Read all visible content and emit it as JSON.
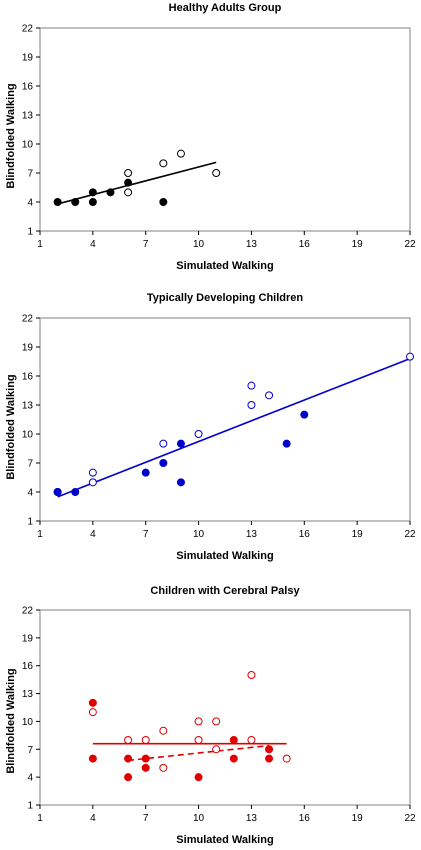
{
  "chart_data": [
    {
      "type": "scatter",
      "title": "Healthy Adults Group",
      "xlabel": "Simulated Walking",
      "ylabel": "Blindfolded Walking",
      "xlim": [
        1,
        22
      ],
      "ylim": [
        1,
        22
      ],
      "xticks": [
        "1",
        "4",
        "7",
        "10",
        "13",
        "16",
        "19",
        "22"
      ],
      "yticks": [
        "1",
        "4",
        "7",
        "10",
        "13",
        "16",
        "19",
        "22"
      ],
      "color": "#000000",
      "series": [
        {
          "marker": "filled",
          "points": [
            [
              2,
              4
            ],
            [
              3,
              4
            ],
            [
              4,
              4
            ],
            [
              4,
              5
            ],
            [
              5,
              5
            ],
            [
              6,
              6
            ],
            [
              8,
              4
            ]
          ]
        },
        {
          "marker": "open",
          "points": [
            [
              6,
              7
            ],
            [
              6,
              5
            ],
            [
              8,
              8
            ],
            [
              9,
              9
            ],
            [
              11,
              7
            ]
          ]
        }
      ],
      "trendlines": [
        {
          "style": "solid",
          "from": [
            2,
            3.8
          ],
          "to": [
            11,
            8.1
          ]
        }
      ]
    },
    {
      "type": "scatter",
      "title": "Typically Developing Children",
      "xlabel": "Simulated Walking",
      "ylabel": "Blindfolded Walking",
      "xlim": [
        1,
        22
      ],
      "ylim": [
        1,
        22
      ],
      "xticks": [
        "1",
        "4",
        "7",
        "10",
        "13",
        "16",
        "19",
        "22"
      ],
      "yticks": [
        "1",
        "4",
        "7",
        "10",
        "13",
        "16",
        "19",
        "22"
      ],
      "color": "#0000cc",
      "series": [
        {
          "marker": "filled",
          "points": [
            [
              2,
              4
            ],
            [
              3,
              4
            ],
            [
              7,
              6
            ],
            [
              8,
              7
            ],
            [
              9,
              9
            ],
            [
              9,
              5
            ],
            [
              15,
              9
            ],
            [
              16,
              12
            ]
          ]
        },
        {
          "marker": "open",
          "points": [
            [
              2,
              4
            ],
            [
              4,
              6
            ],
            [
              4,
              5
            ],
            [
              8,
              9
            ],
            [
              10,
              10
            ],
            [
              13,
              15
            ],
            [
              13,
              13
            ],
            [
              14,
              14
            ],
            [
              22,
              18
            ]
          ]
        }
      ],
      "trendlines": [
        {
          "style": "solid",
          "from": [
            2,
            3.5
          ],
          "to": [
            22,
            17.8
          ]
        }
      ]
    },
    {
      "type": "scatter",
      "title": "Children with Cerebral Palsy",
      "xlabel": "Simulated Walking",
      "ylabel": "Blindfolded Walking",
      "xlim": [
        1,
        22
      ],
      "ylim": [
        1,
        22
      ],
      "xticks": [
        "1",
        "4",
        "7",
        "10",
        "13",
        "16",
        "19",
        "22"
      ],
      "yticks": [
        "1",
        "4",
        "7",
        "10",
        "13",
        "16",
        "19",
        "22"
      ],
      "color": "#e00000",
      "series": [
        {
          "marker": "filled",
          "points": [
            [
              4,
              12
            ],
            [
              4,
              6
            ],
            [
              6,
              6
            ],
            [
              6,
              4
            ],
            [
              7,
              6
            ],
            [
              7,
              5
            ],
            [
              10,
              4
            ],
            [
              12,
              8
            ],
            [
              12,
              6
            ],
            [
              14,
              7
            ],
            [
              14,
              6
            ]
          ]
        },
        {
          "marker": "open",
          "points": [
            [
              4,
              11
            ],
            [
              6,
              8
            ],
            [
              7,
              8
            ],
            [
              8,
              9
            ],
            [
              8,
              5
            ],
            [
              10,
              10
            ],
            [
              10,
              8
            ],
            [
              11,
              10
            ],
            [
              11,
              7
            ],
            [
              13,
              15
            ],
            [
              13,
              8
            ],
            [
              15,
              6
            ]
          ]
        }
      ],
      "trendlines": [
        {
          "style": "solid",
          "from": [
            4,
            7.6
          ],
          "to": [
            15,
            7.6
          ]
        },
        {
          "style": "dashed",
          "from": [
            6,
            5.8
          ],
          "to": [
            14,
            7.4
          ]
        }
      ]
    }
  ]
}
